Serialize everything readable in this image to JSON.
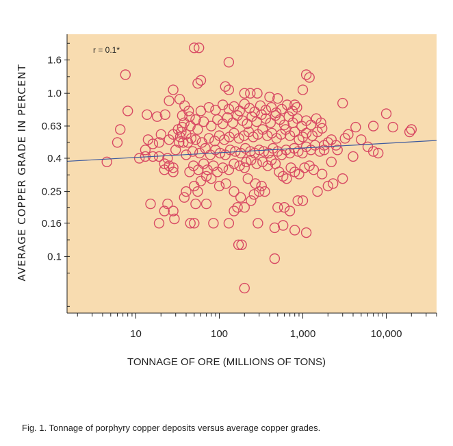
{
  "chart_data": {
    "type": "scatter",
    "xlabel": "TONNAGE OF ORE (MILLIONS OF TONS)",
    "ylabel": "AVERAGE COPPER GRADE IN PERCENT",
    "xscale": "log",
    "yscale": "log",
    "xlim": [
      1.5,
      40000
    ],
    "ylim": [
      0.045,
      2.3
    ],
    "x_ticks": [
      10,
      100,
      1000,
      10000
    ],
    "x_tick_labels": [
      "10",
      "100",
      "1,000",
      "10,000"
    ],
    "y_ticks": [
      1.6,
      1.0,
      0.63,
      0.4,
      0.25,
      0.16,
      0.1
    ],
    "y_tick_labels": [
      "1.6",
      "1.0",
      "0.63",
      "0.4",
      "0.25",
      "0.16",
      "0.1"
    ],
    "annotation": "r = 0.1*",
    "trend_line": {
      "x": [
        1.5,
        40000
      ],
      "y": [
        0.383,
        0.514
      ]
    },
    "grid": false,
    "colors": {
      "background": "#f8dcb0",
      "marker": "#d84a64",
      "trend_line": "#3d5a9e"
    },
    "points": [
      [
        4.5,
        0.38
      ],
      [
        6,
        0.5
      ],
      [
        6.5,
        0.6
      ],
      [
        8,
        0.78
      ],
      [
        7.5,
        1.3
      ],
      [
        13.6,
        0.74
      ],
      [
        18,
        0.72
      ],
      [
        22.4,
        0.74
      ],
      [
        25,
        0.9
      ],
      [
        28,
        1.05
      ],
      [
        33.5,
        0.92
      ],
      [
        36,
        0.73
      ],
      [
        42.9,
        0.78
      ],
      [
        38.4,
        0.84
      ],
      [
        11,
        0.4
      ],
      [
        13,
        0.41
      ],
      [
        16,
        0.41
      ],
      [
        19,
        0.41
      ],
      [
        22,
        0.37
      ],
      [
        25,
        0.36
      ],
      [
        28,
        0.35
      ],
      [
        13,
        0.45
      ],
      [
        16,
        0.49
      ],
      [
        19,
        0.5
      ],
      [
        14,
        0.52
      ],
      [
        20,
        0.56
      ],
      [
        33,
        0.5
      ],
      [
        37,
        0.5
      ],
      [
        30,
        0.45
      ],
      [
        24,
        0.4
      ],
      [
        28,
        0.33
      ],
      [
        22,
        0.34
      ],
      [
        15,
        0.21
      ],
      [
        19,
        0.16
      ],
      [
        22,
        0.19
      ],
      [
        24,
        0.21
      ],
      [
        28,
        0.19
      ],
      [
        29,
        0.17
      ],
      [
        38,
        0.23
      ],
      [
        40,
        0.25
      ],
      [
        52,
        0.21
      ],
      [
        45,
        0.16
      ],
      [
        50,
        0.16
      ],
      [
        70,
        0.21
      ],
      [
        85,
        0.16
      ],
      [
        130,
        0.16
      ],
      [
        150,
        0.19
      ],
      [
        165,
        0.2
      ],
      [
        200,
        0.2
      ],
      [
        50,
        1.9
      ],
      [
        57,
        1.9
      ],
      [
        130,
        1.55
      ],
      [
        60,
        1.2
      ],
      [
        55,
        1.15
      ],
      [
        118,
        1.1
      ],
      [
        130,
        1.05
      ],
      [
        200,
        1.0
      ],
      [
        235,
        1.0
      ],
      [
        285,
        1.0
      ],
      [
        400,
        0.95
      ],
      [
        500,
        0.93
      ],
      [
        800,
        0.85
      ],
      [
        1000,
        1.05
      ],
      [
        1100,
        1.3
      ],
      [
        1200,
        1.25
      ],
      [
        3000,
        0.87
      ],
      [
        7000,
        0.63
      ],
      [
        10000,
        0.75
      ],
      [
        12000,
        0.62
      ],
      [
        19000,
        0.58
      ],
      [
        20000,
        0.6
      ],
      [
        5000,
        0.52
      ],
      [
        6000,
        0.47
      ],
      [
        7000,
        0.44
      ],
      [
        8000,
        0.43
      ],
      [
        4000,
        0.41
      ],
      [
        3200,
        0.53
      ],
      [
        3500,
        0.56
      ],
      [
        4300,
        0.62
      ],
      [
        170,
        0.118
      ],
      [
        185,
        0.118
      ],
      [
        460,
        0.097
      ],
      [
        200,
        0.064
      ],
      [
        460,
        0.15
      ],
      [
        580,
        0.155
      ],
      [
        800,
        0.145
      ],
      [
        1100,
        0.14
      ],
      [
        290,
        0.16
      ],
      [
        500,
        0.2
      ],
      [
        600,
        0.2
      ],
      [
        700,
        0.19
      ],
      [
        870,
        0.22
      ],
      [
        1000,
        0.22
      ],
      [
        1500,
        0.25
      ],
      [
        2000,
        0.27
      ],
      [
        3000,
        0.3
      ],
      [
        2300,
        0.28
      ],
      [
        1700,
        0.32
      ],
      [
        2200,
        0.38
      ],
      [
        2600,
        0.45
      ],
      [
        1800,
        0.45
      ],
      [
        200,
        0.35
      ],
      [
        220,
        0.3
      ],
      [
        270,
        0.28
      ],
      [
        320,
        0.27
      ],
      [
        350,
        0.25
      ],
      [
        300,
        0.25
      ],
      [
        260,
        0.24
      ],
      [
        240,
        0.22
      ],
      [
        180,
        0.23
      ],
      [
        150,
        0.25
      ],
      [
        120,
        0.28
      ],
      [
        100,
        0.27
      ],
      [
        80,
        0.3
      ],
      [
        70,
        0.31
      ],
      [
        60,
        0.29
      ],
      [
        50,
        0.27
      ],
      [
        55,
        0.25
      ],
      [
        44,
        0.33
      ],
      [
        49,
        0.36
      ],
      [
        56,
        0.34
      ],
      [
        65,
        0.37
      ],
      [
        72,
        0.34
      ],
      [
        85,
        0.36
      ],
      [
        95,
        0.33
      ],
      [
        110,
        0.35
      ],
      [
        130,
        0.34
      ],
      [
        150,
        0.37
      ],
      [
        175,
        0.36
      ],
      [
        210,
        0.38
      ],
      [
        240,
        0.39
      ],
      [
        280,
        0.37
      ],
      [
        330,
        0.38
      ],
      [
        380,
        0.36
      ],
      [
        420,
        0.39
      ],
      [
        470,
        0.37
      ],
      [
        520,
        0.33
      ],
      [
        580,
        0.31
      ],
      [
        640,
        0.3
      ],
      [
        720,
        0.35
      ],
      [
        800,
        0.33
      ],
      [
        900,
        0.32
      ],
      [
        1050,
        0.35
      ],
      [
        1200,
        0.36
      ],
      [
        1350,
        0.34
      ],
      [
        40,
        0.42
      ],
      [
        48,
        0.44
      ],
      [
        58,
        0.43
      ],
      [
        68,
        0.46
      ],
      [
        78,
        0.42
      ],
      [
        90,
        0.45
      ],
      [
        102,
        0.43
      ],
      [
        118,
        0.42
      ],
      [
        135,
        0.45
      ],
      [
        155,
        0.44
      ],
      [
        180,
        0.43
      ],
      [
        205,
        0.46
      ],
      [
        235,
        0.44
      ],
      [
        265,
        0.43
      ],
      [
        300,
        0.45
      ],
      [
        340,
        0.44
      ],
      [
        390,
        0.43
      ],
      [
        440,
        0.46
      ],
      [
        500,
        0.44
      ],
      [
        560,
        0.42
      ],
      [
        630,
        0.45
      ],
      [
        700,
        0.43
      ],
      [
        790,
        0.46
      ],
      [
        880,
        0.44
      ],
      [
        990,
        0.43
      ],
      [
        1100,
        0.47
      ],
      [
        1250,
        0.45
      ],
      [
        1400,
        0.48
      ],
      [
        1600,
        0.44
      ],
      [
        1800,
        0.48
      ],
      [
        2000,
        0.5
      ],
      [
        2200,
        0.52
      ],
      [
        2500,
        0.48
      ],
      [
        42,
        0.5
      ],
      [
        52,
        0.52
      ],
      [
        62,
        0.5
      ],
      [
        75,
        0.53
      ],
      [
        88,
        0.51
      ],
      [
        100,
        0.55
      ],
      [
        115,
        0.52
      ],
      [
        132,
        0.54
      ],
      [
        150,
        0.57
      ],
      [
        172,
        0.53
      ],
      [
        198,
        0.55
      ],
      [
        225,
        0.58
      ],
      [
        255,
        0.54
      ],
      [
        290,
        0.56
      ],
      [
        330,
        0.6
      ],
      [
        375,
        0.55
      ],
      [
        425,
        0.57
      ],
      [
        485,
        0.53
      ],
      [
        550,
        0.56
      ],
      [
        620,
        0.6
      ],
      [
        700,
        0.55
      ],
      [
        800,
        0.58
      ],
      [
        900,
        0.52
      ],
      [
        1000,
        0.54
      ],
      [
        1100,
        0.57
      ],
      [
        1300,
        0.55
      ],
      [
        1500,
        0.58
      ],
      [
        1700,
        0.61
      ],
      [
        35,
        0.58
      ],
      [
        45,
        0.63
      ],
      [
        55,
        0.6
      ],
      [
        65,
        0.67
      ],
      [
        80,
        0.63
      ],
      [
        95,
        0.69
      ],
      [
        110,
        0.65
      ],
      [
        125,
        0.71
      ],
      [
        145,
        0.66
      ],
      [
        165,
        0.73
      ],
      [
        190,
        0.68
      ],
      [
        215,
        0.65
      ],
      [
        245,
        0.72
      ],
      [
        280,
        0.67
      ],
      [
        320,
        0.74
      ],
      [
        360,
        0.7
      ],
      [
        410,
        0.66
      ],
      [
        470,
        0.73
      ],
      [
        530,
        0.69
      ],
      [
        600,
        0.64
      ],
      [
        680,
        0.72
      ],
      [
        760,
        0.66
      ],
      [
        860,
        0.7
      ],
      [
        970,
        0.63
      ],
      [
        1100,
        0.68
      ],
      [
        1250,
        0.64
      ],
      [
        1450,
        0.7
      ],
      [
        1650,
        0.66
      ],
      [
        60,
        0.78
      ],
      [
        75,
        0.82
      ],
      [
        90,
        0.79
      ],
      [
        110,
        0.85
      ],
      [
        130,
        0.8
      ],
      [
        150,
        0.83
      ],
      [
        175,
        0.78
      ],
      [
        200,
        0.86
      ],
      [
        230,
        0.81
      ],
      [
        265,
        0.77
      ],
      [
        310,
        0.84
      ],
      [
        360,
        0.79
      ],
      [
        420,
        0.82
      ],
      [
        480,
        0.76
      ],
      [
        560,
        0.8
      ],
      [
        650,
        0.85
      ],
      [
        750,
        0.78
      ],
      [
        850,
        0.82
      ],
      [
        44,
        0.72
      ],
      [
        52,
        0.69
      ],
      [
        38,
        0.66
      ],
      [
        36,
        0.62
      ],
      [
        32,
        0.6
      ],
      [
        28,
        0.56
      ],
      [
        34,
        0.54
      ],
      [
        40,
        0.56
      ],
      [
        46,
        0.53
      ],
      [
        25,
        0.52
      ]
    ]
  },
  "caption": "Fig. 1. Tonnage of porphyry copper deposits versus average copper grades."
}
